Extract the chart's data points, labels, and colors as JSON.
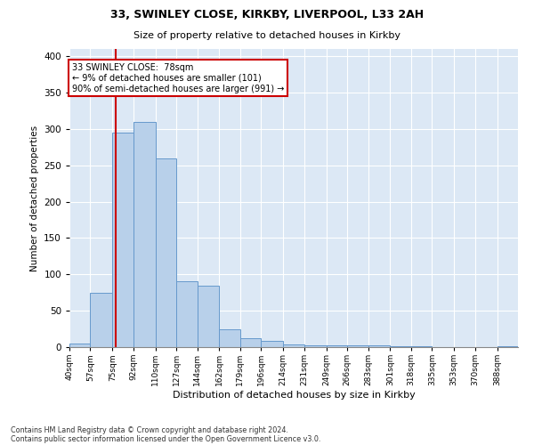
{
  "title1": "33, SWINLEY CLOSE, KIRKBY, LIVERPOOL, L33 2AH",
  "title2": "Size of property relative to detached houses in Kirkby",
  "xlabel": "Distribution of detached houses by size in Kirkby",
  "ylabel": "Number of detached properties",
  "footer1": "Contains HM Land Registry data © Crown copyright and database right 2024.",
  "footer2": "Contains public sector information licensed under the Open Government Licence v3.0.",
  "bin_labels": [
    "40sqm",
    "57sqm",
    "75sqm",
    "92sqm",
    "110sqm",
    "127sqm",
    "144sqm",
    "162sqm",
    "179sqm",
    "196sqm",
    "214sqm",
    "231sqm",
    "249sqm",
    "266sqm",
    "283sqm",
    "301sqm",
    "318sqm",
    "335sqm",
    "353sqm",
    "370sqm",
    "388sqm"
  ],
  "bar_values": [
    5,
    75,
    295,
    310,
    260,
    90,
    85,
    25,
    12,
    8,
    4,
    2,
    2,
    2,
    2,
    1,
    1,
    0,
    0,
    0,
    1
  ],
  "bar_color": "#b8d0ea",
  "bar_edge_color": "#6699cc",
  "property_sqm": 78,
  "property_label": "33 SWINLEY CLOSE:  78sqm",
  "annotation_line1": "← 9% of detached houses are smaller (101)",
  "annotation_line2": "90% of semi-detached houses are larger (991) →",
  "vline_color": "#cc0000",
  "annotation_box_color": "#cc0000",
  "ylim": [
    0,
    410
  ],
  "yticks": [
    0,
    50,
    100,
    150,
    200,
    250,
    300,
    350,
    400
  ],
  "background_color": "#dce8f5",
  "plot_bg_color": "#dce8f5",
  "bin_nums": [
    40,
    57,
    75,
    92,
    110,
    127,
    144,
    162,
    179,
    196,
    214,
    231,
    249,
    266,
    283,
    301,
    318,
    335,
    353,
    370,
    388
  ]
}
